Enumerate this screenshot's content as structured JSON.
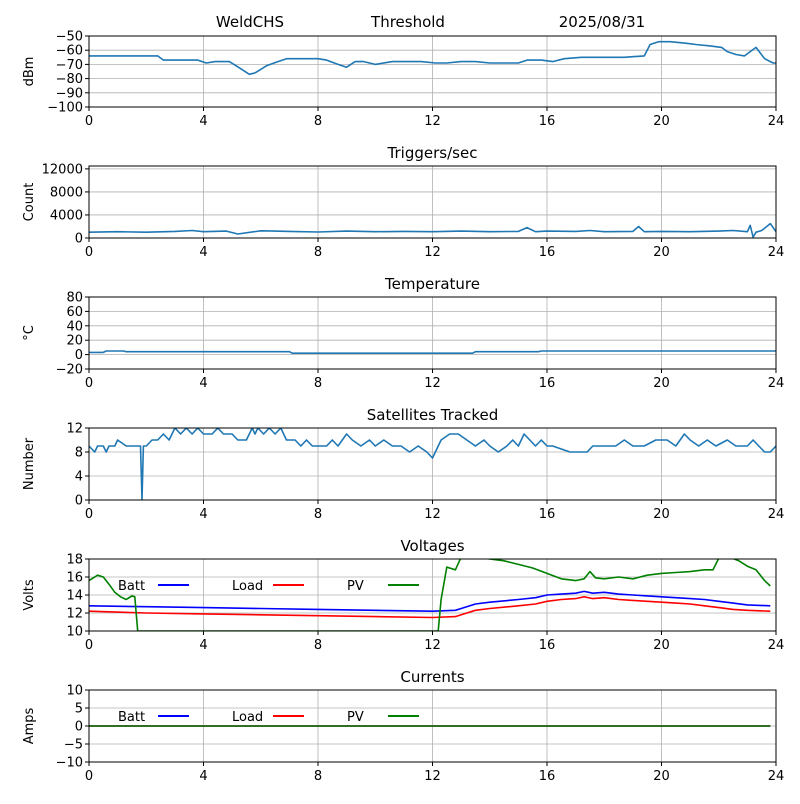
{
  "header": {
    "station": "WeldCHS",
    "label": "Threshold",
    "date": "2025/08/31"
  },
  "colors": {
    "default_line": "#1f77b4",
    "grid": "#b0b0b0",
    "batt": "#0000ff",
    "load": "#ff0000",
    "pv": "#008000"
  },
  "chart_data": [
    {
      "id": "threshold",
      "type": "line",
      "title": "",
      "ylabel": "dBm",
      "xlim": [
        0,
        24
      ],
      "ylim": [
        -100,
        -50
      ],
      "x_ticks": [
        0,
        4,
        8,
        12,
        16,
        20,
        24
      ],
      "y_ticks": [
        -100,
        -90,
        -80,
        -70,
        -60,
        -50
      ],
      "grid": true,
      "series": [
        {
          "color": "#1f77b4",
          "x": [
            0,
            0.7,
            1.5,
            2.4,
            2.6,
            3.2,
            3.8,
            4.1,
            4.4,
            4.9,
            5.3,
            5.6,
            5.8,
            6.2,
            6.6,
            6.9,
            7.4,
            8.0,
            8.3,
            8.7,
            9.0,
            9.3,
            9.6,
            10.0,
            10.6,
            11.0,
            11.2,
            11.6,
            12.1,
            12.5,
            13.0,
            13.5,
            14.0,
            14.5,
            15.0,
            15.3,
            15.8,
            16.2,
            16.6,
            17.2,
            18.0,
            18.7,
            19.4,
            19.6,
            19.9,
            20.3,
            20.8,
            21.2,
            21.7,
            22.1,
            22.3,
            22.6,
            22.9,
            23.1,
            23.3,
            23.6,
            23.9,
            24
          ],
          "y": [
            -64,
            -64,
            -64,
            -64,
            -67,
            -67,
            -67,
            -69,
            -68,
            -68,
            -73,
            -77,
            -76,
            -71,
            -68,
            -66,
            -66,
            -66,
            -67,
            -70,
            -72,
            -68,
            -68,
            -70,
            -68,
            -68,
            -68,
            -68,
            -69,
            -69,
            -68,
            -68,
            -69,
            -69,
            -69,
            -67,
            -67,
            -68,
            -66,
            -65,
            -65,
            -65,
            -64,
            -56,
            -54,
            -54,
            -55,
            -56,
            -57,
            -58,
            -61,
            -63,
            -64,
            -61,
            -58,
            -66,
            -69,
            -69
          ]
        }
      ]
    },
    {
      "id": "triggers",
      "type": "line",
      "title": "Triggers/sec",
      "ylabel": "Count",
      "xlim": [
        0,
        24
      ],
      "ylim": [
        0,
        12500
      ],
      "x_ticks": [
        0,
        4,
        8,
        12,
        16,
        20,
        24
      ],
      "y_ticks": [
        0,
        4000,
        8000,
        12000
      ],
      "grid": true,
      "series": [
        {
          "color": "#1f77b4",
          "x": [
            0,
            1,
            2,
            3,
            3.6,
            4,
            4.8,
            5.2,
            6,
            6.5,
            7,
            8,
            9,
            10,
            11,
            12,
            13,
            14,
            15,
            15.3,
            15.6,
            16,
            17,
            17.5,
            18,
            19,
            19.2,
            19.4,
            20,
            21,
            22,
            22.5,
            23,
            23.1,
            23.2,
            23.3,
            23.5,
            23.8,
            24
          ],
          "y": [
            1000,
            1100,
            1000,
            1150,
            1300,
            1100,
            1200,
            700,
            1250,
            1200,
            1150,
            1050,
            1200,
            1100,
            1150,
            1100,
            1200,
            1100,
            1150,
            1800,
            1100,
            1200,
            1150,
            1300,
            1100,
            1150,
            2000,
            1100,
            1150,
            1100,
            1200,
            1300,
            1100,
            2200,
            150,
            1000,
            1300,
            2500,
            1100
          ]
        }
      ]
    },
    {
      "id": "temperature",
      "type": "line",
      "title": "Temperature",
      "ylabel": "°C",
      "xlim": [
        0,
        24
      ],
      "ylim": [
        -20,
        80
      ],
      "x_ticks": [
        0,
        4,
        8,
        12,
        16,
        20,
        24
      ],
      "y_ticks": [
        -20,
        0,
        20,
        40,
        60,
        80
      ],
      "grid": true,
      "series": [
        {
          "color": "#1f77b4",
          "x": [
            0,
            0.5,
            0.6,
            1.2,
            1.3,
            7.0,
            7.1,
            13.4,
            13.5,
            15.7,
            15.8,
            24
          ],
          "y": [
            3,
            3,
            5,
            5,
            4,
            4,
            2,
            2,
            4,
            4,
            5,
            5
          ]
        }
      ]
    },
    {
      "id": "satellites",
      "type": "line",
      "title": "Satellites Tracked",
      "ylabel": "Number",
      "xlim": [
        0,
        24
      ],
      "ylim": [
        0,
        12
      ],
      "x_ticks": [
        0,
        4,
        8,
        12,
        16,
        20,
        24
      ],
      "y_ticks": [
        0,
        4,
        8,
        12
      ],
      "grid": true,
      "series": [
        {
          "color": "#1f77b4",
          "x": [
            0,
            0.2,
            0.3,
            0.5,
            0.6,
            0.7,
            0.9,
            1.0,
            1.3,
            1.4,
            1.6,
            1.8,
            1.85,
            1.9,
            2.0,
            2.2,
            2.4,
            2.6,
            2.8,
            3.0,
            3.2,
            3.4,
            3.6,
            3.8,
            4.0,
            4.3,
            4.5,
            4.7,
            4.8,
            5.0,
            5.2,
            5.5,
            5.7,
            5.8,
            5.9,
            6.1,
            6.3,
            6.5,
            6.7,
            6.9,
            7.2,
            7.4,
            7.6,
            7.8,
            8.0,
            8.3,
            8.5,
            8.7,
            9.0,
            9.2,
            9.5,
            9.8,
            10.0,
            10.3,
            10.6,
            10.9,
            11.2,
            11.5,
            11.8,
            12.0,
            12.3,
            12.6,
            12.9,
            13.2,
            13.5,
            13.8,
            14.0,
            14.3,
            14.6,
            14.8,
            15.0,
            15.2,
            15.4,
            15.6,
            15.8,
            16.0,
            16.2,
            16.8,
            17.0,
            17.4,
            17.6,
            18.0,
            18.4,
            18.7,
            19.0,
            19.4,
            19.8,
            20.2,
            20.5,
            20.8,
            21.0,
            21.3,
            21.6,
            21.9,
            22.3,
            22.6,
            23.0,
            23.2,
            23.4,
            23.6,
            23.8,
            24
          ],
          "y": [
            9,
            8,
            9,
            9,
            8,
            9,
            9,
            10,
            9,
            9,
            9,
            9,
            0,
            9,
            9,
            10,
            10,
            11,
            10,
            12,
            11,
            12,
            11,
            12,
            11,
            11,
            12,
            11,
            11,
            11,
            10,
            10,
            12,
            11,
            12,
            11,
            12,
            11,
            12,
            10,
            10,
            9,
            10,
            9,
            9,
            9,
            10,
            9,
            11,
            10,
            9,
            10,
            9,
            10,
            9,
            9,
            8,
            9,
            8,
            7,
            10,
            11,
            11,
            10,
            9,
            10,
            9,
            8,
            9,
            10,
            9,
            11,
            10,
            9,
            10,
            9,
            9,
            8,
            8,
            8,
            9,
            9,
            9,
            10,
            9,
            9,
            10,
            10,
            9,
            11,
            10,
            9,
            10,
            9,
            10,
            9,
            9,
            10,
            9,
            8,
            8,
            9
          ]
        }
      ]
    },
    {
      "id": "voltages",
      "type": "line",
      "title": "Voltages",
      "ylabel": "Volts",
      "xlim": [
        0,
        24
      ],
      "ylim": [
        10,
        18
      ],
      "x_ticks": [
        0,
        4,
        8,
        12,
        16,
        20,
        24
      ],
      "y_ticks": [
        10,
        12,
        14,
        16,
        18
      ],
      "grid": true,
      "legend": {
        "placement": "upper-left",
        "entries": [
          "Batt",
          "Load",
          "PV"
        ]
      },
      "series": [
        {
          "name": "Batt",
          "color": "#0000ff",
          "x": [
            0,
            2,
            4,
            6,
            8,
            10,
            12,
            12.8,
            13.1,
            13.5,
            14,
            15,
            15.6,
            16,
            16.5,
            17,
            17.3,
            17.6,
            18,
            18.5,
            19,
            19.5,
            20,
            20.5,
            21,
            21.5,
            22,
            22.5,
            23,
            23.8
          ],
          "y": [
            12.8,
            12.7,
            12.6,
            12.5,
            12.4,
            12.3,
            12.2,
            12.3,
            12.6,
            13.0,
            13.2,
            13.5,
            13.7,
            14.0,
            14.1,
            14.2,
            14.4,
            14.2,
            14.3,
            14.1,
            14.0,
            13.9,
            13.8,
            13.7,
            13.6,
            13.5,
            13.3,
            13.1,
            12.9,
            12.8
          ]
        },
        {
          "name": "Load",
          "color": "#ff0000",
          "x": [
            0,
            2,
            4,
            6,
            8,
            10,
            12,
            12.8,
            13.1,
            13.5,
            14,
            15,
            15.6,
            16,
            16.5,
            17,
            17.3,
            17.6,
            18,
            18.5,
            19,
            19.5,
            20,
            20.5,
            21,
            21.5,
            22,
            22.5,
            23,
            23.8
          ],
          "y": [
            12.2,
            12.0,
            11.9,
            11.8,
            11.7,
            11.6,
            11.5,
            11.6,
            11.9,
            12.3,
            12.5,
            12.8,
            13.0,
            13.3,
            13.5,
            13.6,
            13.8,
            13.6,
            13.7,
            13.5,
            13.4,
            13.3,
            13.2,
            13.1,
            13.0,
            12.8,
            12.6,
            12.4,
            12.3,
            12.2
          ]
        },
        {
          "name": "PV",
          "color": "#008000",
          "x": [
            0,
            0.3,
            0.5,
            0.7,
            0.9,
            1.1,
            1.3,
            1.5,
            1.6,
            1.7,
            12.2,
            12.3,
            12.5,
            12.8,
            13.0,
            13.2,
            13.5,
            14,
            14.5,
            15,
            15.5,
            16,
            16.5,
            17,
            17.3,
            17.5,
            17.7,
            18,
            18.5,
            19,
            19.5,
            20,
            20.5,
            21,
            21.5,
            21.8,
            22.0,
            22.3,
            22.7,
            23.0,
            23.3,
            23.6,
            23.8
          ],
          "y": [
            15.6,
            16.2,
            16.0,
            15.2,
            14.3,
            13.8,
            13.5,
            13.9,
            13.8,
            10.0,
            10.0,
            13.5,
            17.1,
            16.8,
            18.2,
            18.3,
            18.2,
            18.0,
            17.8,
            17.4,
            17.0,
            16.4,
            15.8,
            15.6,
            15.8,
            16.6,
            15.9,
            15.8,
            16.0,
            15.8,
            16.2,
            16.4,
            16.5,
            16.6,
            16.8,
            16.8,
            18.1,
            18.3,
            17.8,
            17.2,
            16.8,
            15.6,
            15.0
          ]
        }
      ]
    },
    {
      "id": "currents",
      "type": "line",
      "title": "Currents",
      "ylabel": "Amps",
      "xlim": [
        0,
        24
      ],
      "ylim": [
        -10,
        10
      ],
      "x_ticks": [
        0,
        4,
        8,
        12,
        16,
        20,
        24
      ],
      "y_ticks": [
        -10,
        -5,
        0,
        5,
        10
      ],
      "grid": true,
      "legend": {
        "placement": "upper-left",
        "entries": [
          "Batt",
          "Load",
          "PV"
        ]
      },
      "series": [
        {
          "name": "Batt",
          "color": "#0000ff",
          "x": [
            0,
            23.8
          ],
          "y": [
            0,
            0
          ]
        },
        {
          "name": "Load",
          "color": "#ff0000",
          "x": [
            0,
            23.8
          ],
          "y": [
            0,
            0
          ]
        },
        {
          "name": "PV",
          "color": "#008000",
          "x": [
            0,
            23.8
          ],
          "y": [
            0,
            0
          ]
        }
      ]
    }
  ]
}
